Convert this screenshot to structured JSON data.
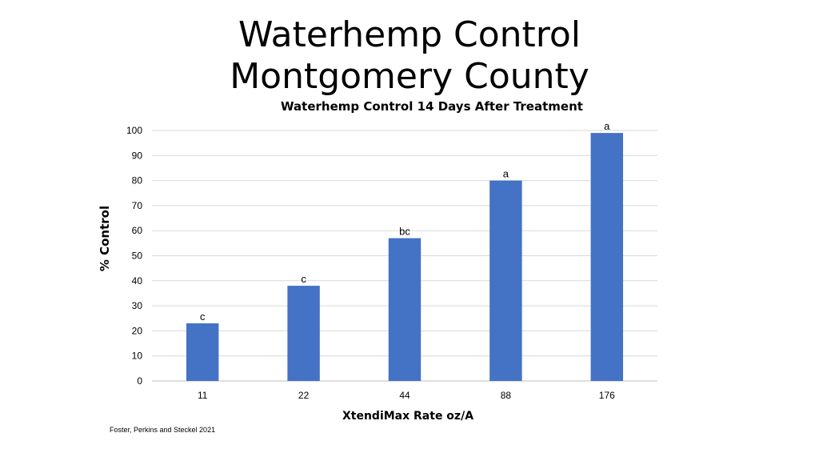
{
  "slide": {
    "title_line1": "Waterhemp Control",
    "title_line2": "Montgomery County",
    "credit": "Foster, Perkins and Steckel  2021"
  },
  "chart_data": {
    "type": "bar",
    "title": "Waterhemp Control 14 Days After Treatment",
    "xlabel": "XtendiMax Rate oz/A",
    "ylabel": "% Control",
    "categories": [
      "11",
      "22",
      "44",
      "88",
      "176"
    ],
    "values": [
      23,
      38,
      57,
      80,
      99
    ],
    "data_labels": [
      "c",
      "c",
      "bc",
      "a",
      "a"
    ],
    "ylim": [
      0,
      100
    ],
    "yticks": [
      0,
      10,
      20,
      30,
      40,
      50,
      60,
      70,
      80,
      90,
      100
    ],
    "grid": true,
    "legend": "none",
    "bar_color": "#4472C4",
    "grid_color": "#D9D9D9"
  }
}
